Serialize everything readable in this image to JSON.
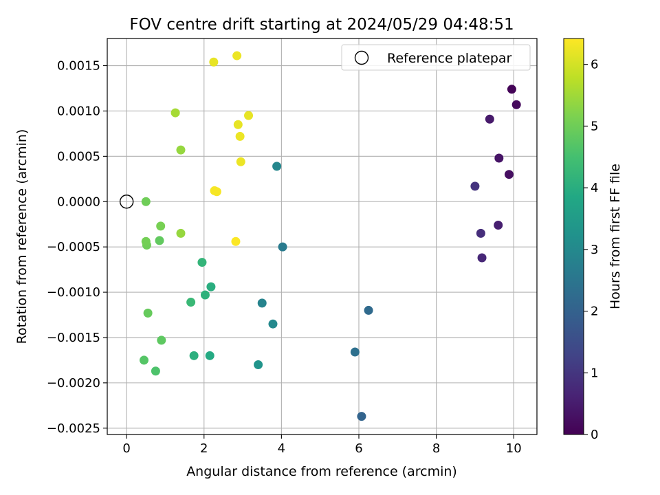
{
  "chart_data": {
    "type": "scatter",
    "title": "FOV centre drift starting at 2024/05/29 04:48:51",
    "xlabel": "Angular distance from reference (arcmin)",
    "ylabel": "Rotation from reference (arcmin)",
    "xlim": [
      -0.5,
      10.6
    ],
    "ylim": [
      -0.00257,
      0.0018
    ],
    "xticks": [
      0,
      2,
      4,
      6,
      8,
      10
    ],
    "xtick_labels": [
      "0",
      "2",
      "4",
      "6",
      "8",
      "10"
    ],
    "yticks": [
      0.0015,
      0.001,
      0.0005,
      0.0,
      -0.0005,
      -0.001,
      -0.0015,
      -0.002,
      -0.0025
    ],
    "ytick_labels": [
      "0.0015",
      "0.0010",
      "0.0005",
      "0.0000",
      "−0.0005",
      "−0.0010",
      "−0.0015",
      "−0.0020",
      "−0.0025"
    ],
    "grid": true,
    "legend": {
      "placement": "top-right",
      "entries": [
        "Reference platepar"
      ]
    },
    "reference_point": {
      "name": "Reference platepar",
      "x": 0,
      "y": 0,
      "marker": "open-circle"
    },
    "colorbar": {
      "label": "Hours from first FF file",
      "colormap": "viridis",
      "range": [
        0,
        6.42
      ],
      "ticks": [
        0,
        1,
        2,
        3,
        4,
        5,
        6
      ],
      "tick_labels": [
        "0",
        "1",
        "2",
        "3",
        "4",
        "5",
        "6"
      ]
    },
    "points": [
      {
        "x": 9.95,
        "y": 0.00124,
        "h": 0.05
      },
      {
        "x": 10.07,
        "y": 0.00107,
        "h": 0.15
      },
      {
        "x": 9.88,
        "y": 0.0003,
        "h": 0.25
      },
      {
        "x": 9.62,
        "y": 0.00048,
        "h": 0.35
      },
      {
        "x": 9.38,
        "y": 0.00091,
        "h": 0.45
      },
      {
        "x": 9.6,
        "y": -0.00026,
        "h": 0.55
      },
      {
        "x": 9.18,
        "y": -0.00062,
        "h": 0.7
      },
      {
        "x": 9.15,
        "y": -0.00035,
        "h": 0.85
      },
      {
        "x": 9.0,
        "y": 0.00017,
        "h": 0.95
      },
      {
        "x": 6.07,
        "y": -0.00237,
        "h": 2.05
      },
      {
        "x": 6.25,
        "y": -0.0012,
        "h": 2.2
      },
      {
        "x": 5.9,
        "y": -0.00166,
        "h": 2.35
      },
      {
        "x": 4.03,
        "y": -0.0005,
        "h": 2.65
      },
      {
        "x": 3.5,
        "y": -0.00112,
        "h": 2.85
      },
      {
        "x": 3.78,
        "y": -0.00135,
        "h": 3.0
      },
      {
        "x": 3.88,
        "y": 0.00039,
        "h": 2.95
      },
      {
        "x": 3.4,
        "y": -0.0018,
        "h": 3.3
      },
      {
        "x": 2.15,
        "y": -0.0017,
        "h": 3.9
      },
      {
        "x": 2.18,
        "y": -0.00094,
        "h": 4.0
      },
      {
        "x": 2.03,
        "y": -0.00103,
        "h": 4.1
      },
      {
        "x": 1.74,
        "y": -0.0017,
        "h": 4.05
      },
      {
        "x": 1.95,
        "y": -0.00067,
        "h": 4.2
      },
      {
        "x": 1.66,
        "y": -0.00111,
        "h": 4.3
      },
      {
        "x": 0.75,
        "y": -0.00187,
        "h": 4.6
      },
      {
        "x": 0.45,
        "y": -0.00175,
        "h": 4.7
      },
      {
        "x": 0.9,
        "y": -0.00153,
        "h": 4.8
      },
      {
        "x": 0.55,
        "y": -0.00123,
        "h": 4.9
      },
      {
        "x": 0.52,
        "y": -0.00048,
        "h": 5.0
      },
      {
        "x": 0.85,
        "y": -0.00043,
        "h": 4.85
      },
      {
        "x": 0.5,
        "y": -0.00044,
        "h": 5.05
      },
      {
        "x": 0.88,
        "y": -0.00027,
        "h": 5.1
      },
      {
        "x": 0.5,
        "y": 0.0,
        "h": 5.0
      },
      {
        "x": 1.4,
        "y": -0.00035,
        "h": 5.4
      },
      {
        "x": 1.4,
        "y": 0.00057,
        "h": 5.4
      },
      {
        "x": 1.26,
        "y": 0.00098,
        "h": 5.55
      },
      {
        "x": 2.25,
        "y": 0.00154,
        "h": 6.2
      },
      {
        "x": 2.85,
        "y": 0.00161,
        "h": 6.25
      },
      {
        "x": 3.15,
        "y": 0.00095,
        "h": 6.2
      },
      {
        "x": 2.88,
        "y": 0.00085,
        "h": 6.2
      },
      {
        "x": 2.93,
        "y": 0.00072,
        "h": 6.25
      },
      {
        "x": 2.95,
        "y": 0.00044,
        "h": 6.25
      },
      {
        "x": 2.27,
        "y": 0.00012,
        "h": 6.35
      },
      {
        "x": 2.33,
        "y": 0.00011,
        "h": 6.35
      },
      {
        "x": 2.82,
        "y": -0.00044,
        "h": 6.4
      }
    ]
  }
}
